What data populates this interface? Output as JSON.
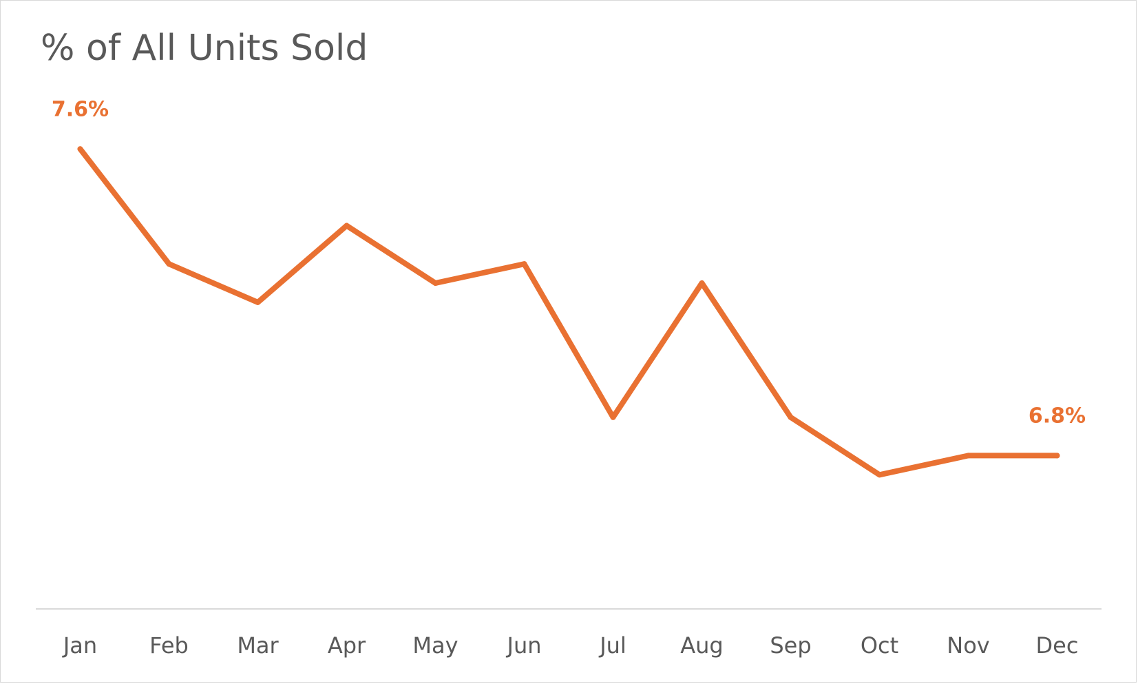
{
  "chart_data": {
    "type": "line",
    "title": "% of All Units Sold",
    "xlabel": "",
    "ylabel": "",
    "categories": [
      "Jan",
      "Feb",
      "Mar",
      "Apr",
      "May",
      "Jun",
      "Jul",
      "Aug",
      "Sep",
      "Oct",
      "Nov",
      "Dec"
    ],
    "series": [
      {
        "values": [
          7.6,
          7.3,
          7.2,
          7.4,
          7.25,
          7.3,
          6.9,
          7.25,
          6.9,
          6.75,
          6.8,
          6.8
        ]
      }
    ],
    "data_labels": [
      {
        "category": "Jan",
        "text": "7.6%"
      },
      {
        "category": "Dec",
        "text": "6.8%"
      }
    ],
    "ylim": [
      6.4,
      7.8
    ],
    "grid": false,
    "legend": "none",
    "colors": {
      "line": "#E97132",
      "axis": "#d9d9d9",
      "text": "#595959",
      "frame": "#d9d9d9"
    }
  }
}
